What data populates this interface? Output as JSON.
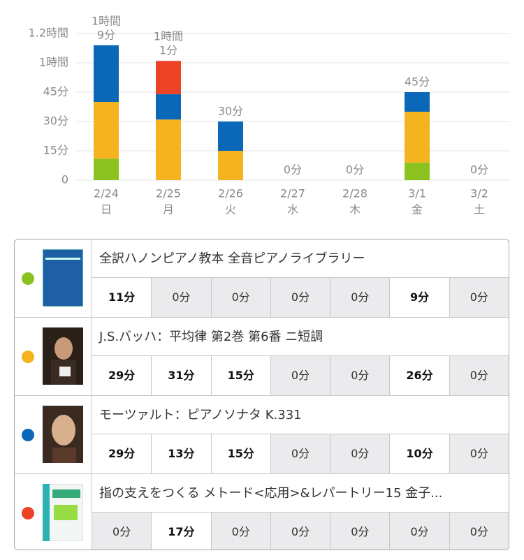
{
  "chart_data": {
    "type": "stacked-bar",
    "categories": [
      "2/24",
      "2/25",
      "2/26",
      "2/27",
      "2/28",
      "3/1",
      "3/2"
    ],
    "weekdays": [
      "日",
      "月",
      "火",
      "水",
      "木",
      "金",
      "土"
    ],
    "total_labels": [
      [
        "1時間",
        "9分"
      ],
      [
        "1時間",
        "1分"
      ],
      [
        "30分"
      ],
      [
        "0分"
      ],
      [
        "0分"
      ],
      [
        "45分"
      ],
      [
        "0分"
      ]
    ],
    "ylim": [
      0,
      75
    ],
    "yticks": [
      0,
      {
        "value": 15,
        "label": "15分"
      },
      {
        "value": 30,
        "label": "30分"
      },
      {
        "value": 45,
        "label": "45分"
      },
      {
        "value": 60,
        "label": "1時間"
      },
      {
        "value": 75,
        "label": "1.2時間"
      }
    ],
    "grid": true,
    "series": [
      {
        "name": "全訳ハノンピアノ教本  全音ピアノライブラリー",
        "color": "#8cc21f",
        "values": [
          11,
          0,
          0,
          0,
          0,
          9,
          0
        ],
        "value_labels": [
          "11分",
          "0分",
          "0分",
          "0分",
          "0分",
          "9分",
          "0分"
        ]
      },
      {
        "name": "J.S.バッハ：平均律 第2巻 第6番 ニ短調",
        "color": "#f5b31f",
        "values": [
          29,
          31,
          15,
          0,
          0,
          26,
          0
        ],
        "value_labels": [
          "29分",
          "31分",
          "15分",
          "0分",
          "0分",
          "26分",
          "0分"
        ]
      },
      {
        "name": "モーツァルト：ピアノソナタ K.331",
        "color": "#0b68b8",
        "values": [
          29,
          13,
          15,
          0,
          0,
          10,
          0
        ],
        "value_labels": [
          "29分",
          "13分",
          "15分",
          "0分",
          "0分",
          "10分",
          "0分"
        ]
      },
      {
        "name": "指の支えをつくる メトード<応用>&レパートリー15 金子...",
        "color": "#ee4226",
        "values": [
          0,
          17,
          0,
          0,
          0,
          0,
          0
        ],
        "value_labels": [
          "0分",
          "17分",
          "0分",
          "0分",
          "0分",
          "0分",
          "0分"
        ]
      }
    ]
  }
}
